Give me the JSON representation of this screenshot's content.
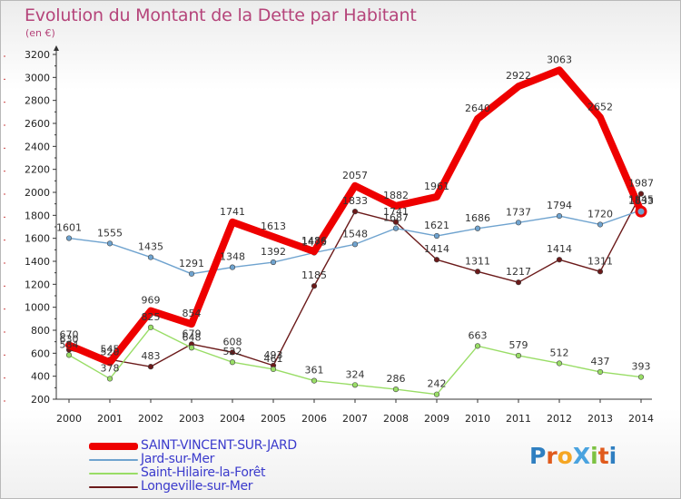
{
  "title": "Evolution du Montant de la Dette par Habitant",
  "unit": "(en €)",
  "logo": {
    "text": "ProXiti",
    "colors": [
      "#2f7fc1",
      "#e05a1c",
      "#f5a623",
      "#4aa3df",
      "#7cc242",
      "#e05a1c",
      "#2f7fc1"
    ]
  },
  "chart_data": {
    "type": "line",
    "x": [
      2000,
      2001,
      2002,
      2003,
      2004,
      2005,
      2006,
      2007,
      2008,
      2009,
      2010,
      2011,
      2012,
      2013,
      2014
    ],
    "ylim": [
      200,
      3200
    ],
    "yticks": [
      200,
      400,
      600,
      800,
      1000,
      1200,
      1400,
      1600,
      1800,
      2000,
      2200,
      2400,
      2600,
      2800,
      3000,
      3200
    ],
    "grid": false,
    "legend_position": "bottom-left",
    "series": [
      {
        "name": "SAINT-VINCENT-SUR-JARD",
        "color": "#ee0000",
        "values": [
          670,
          520,
          969,
          854,
          1741,
          1613,
          1486,
          2057,
          1882,
          1961,
          2640,
          2922,
          3063,
          2652,
          1833
        ]
      },
      {
        "name": "Jard-sur-Mer",
        "color": "#6fa3cf",
        "values": [
          1601,
          1555,
          1435,
          1291,
          1348,
          1392,
          1475,
          1548,
          1687,
          1621,
          1686,
          1737,
          1794,
          1720,
          1845
        ]
      },
      {
        "name": "Saint-Hilaire-la-Forêt",
        "color": "#99dd66",
        "values": [
          584,
          378,
          825,
          648,
          522,
          461,
          361,
          324,
          286,
          242,
          663,
          579,
          512,
          437,
          393
        ]
      },
      {
        "name": "Longeville-sur-Mer",
        "color": "#6b1a1a",
        "values": [
          630,
          545,
          483,
          679,
          608,
          493,
          1185,
          1833,
          1741,
          1414,
          1311,
          1217,
          1414,
          1311,
          1987
        ]
      }
    ]
  }
}
